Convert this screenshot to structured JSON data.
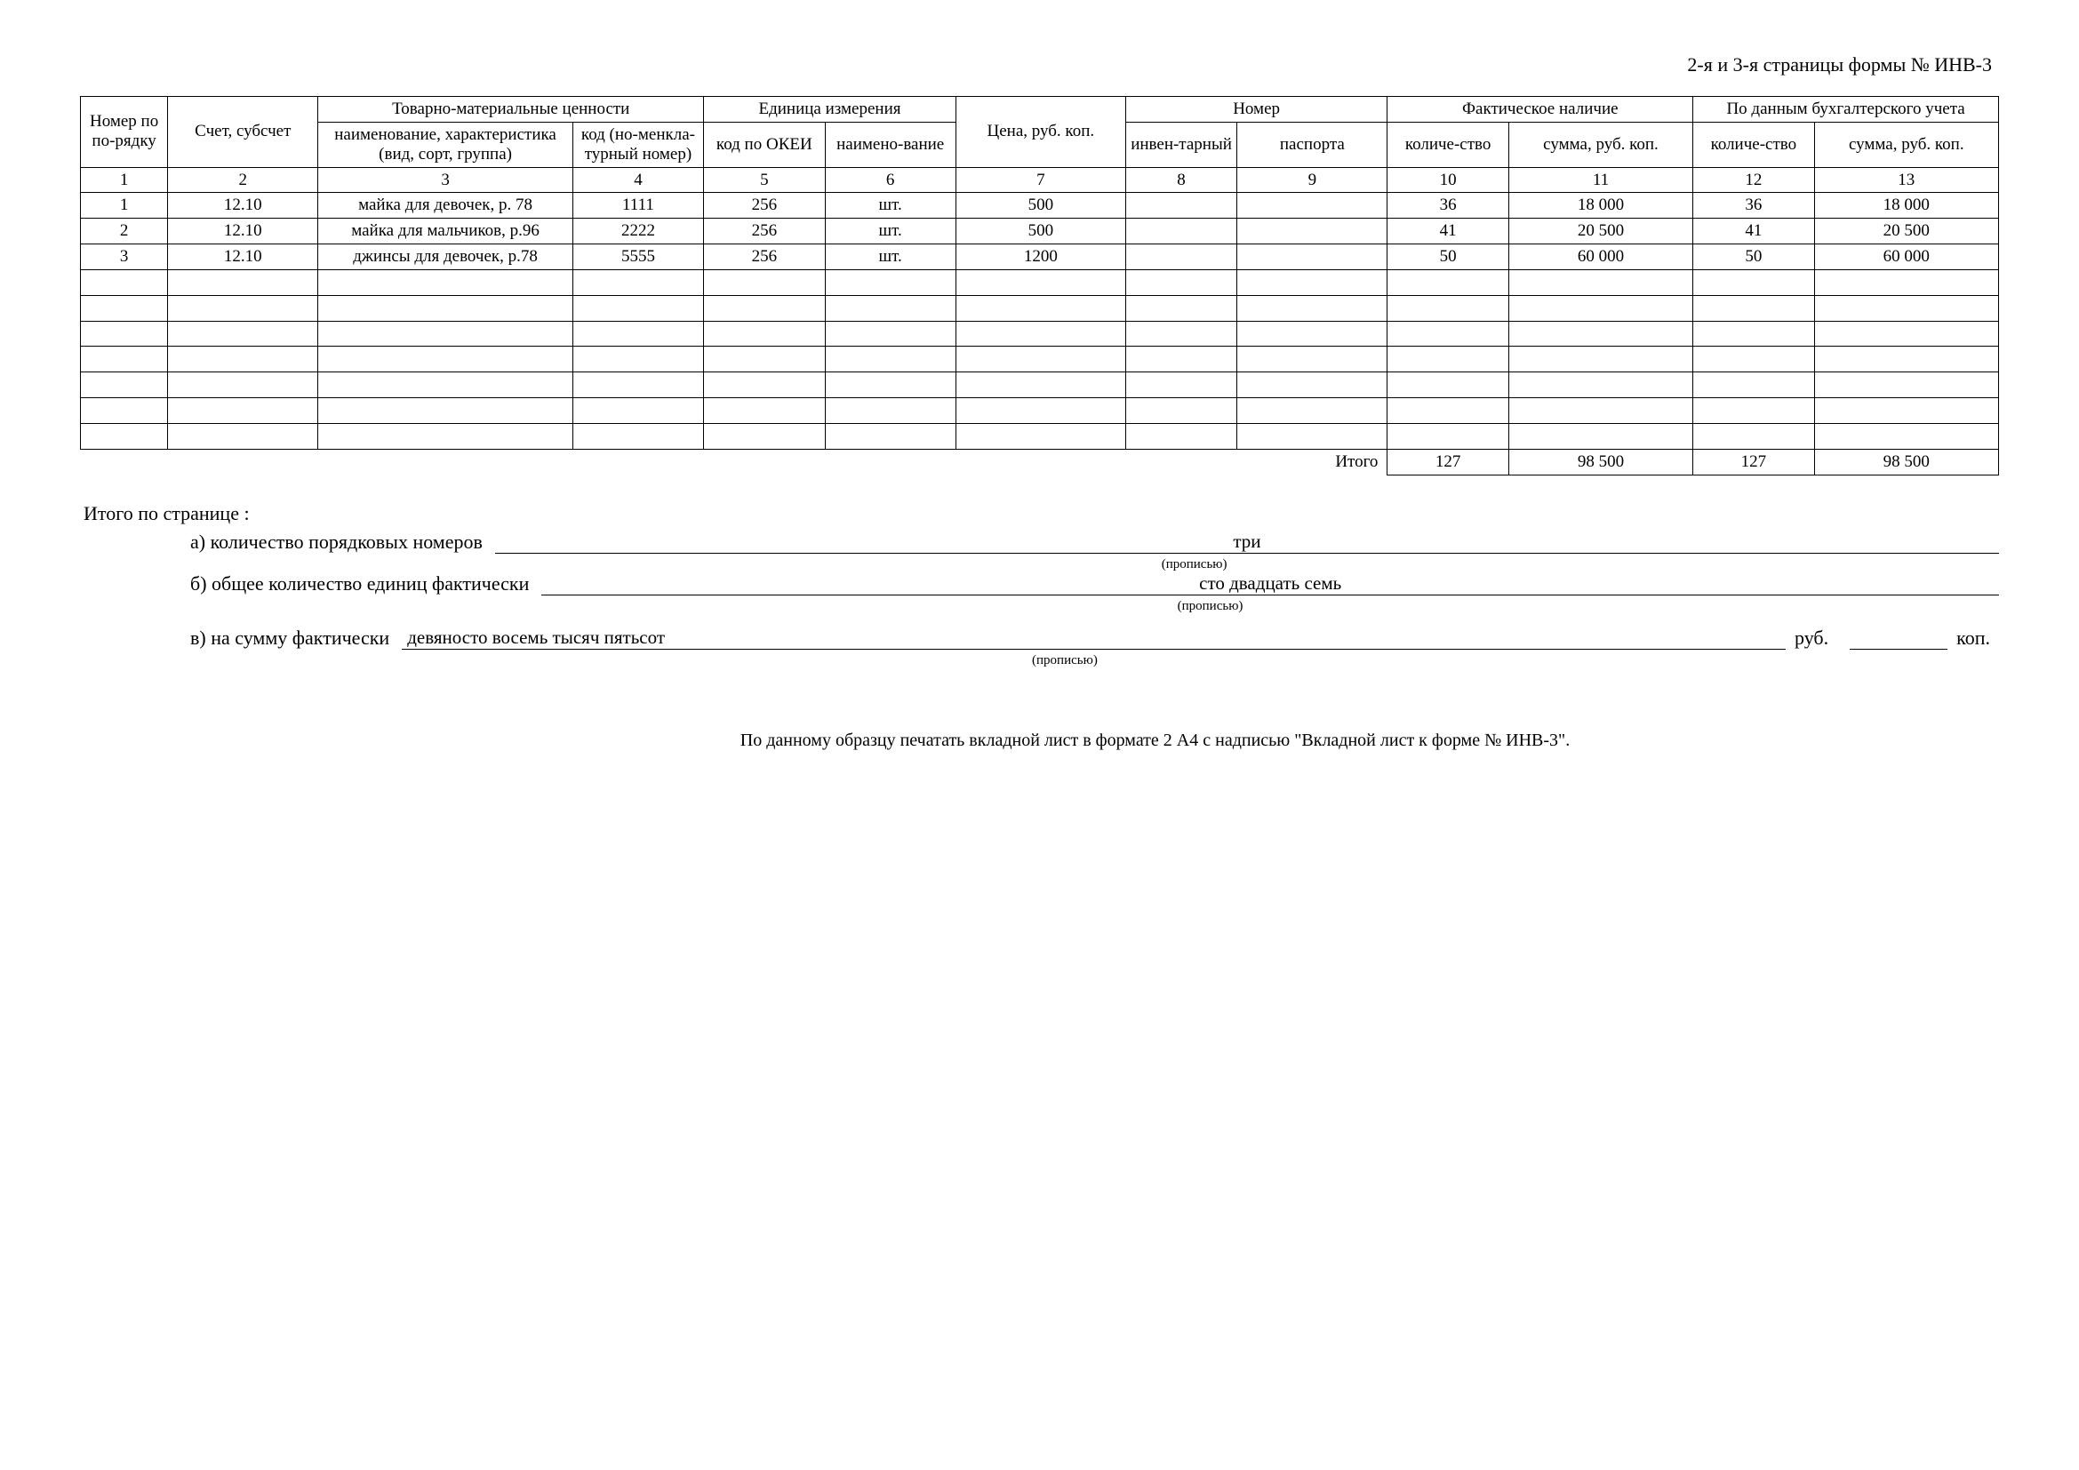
{
  "header": {
    "title": "2-я и 3-я страницы формы № ИНВ-3"
  },
  "table": {
    "head": {
      "row_no": "Номер по по-рядку",
      "account": "Счет, субсчет",
      "goods_group": "Товарно-материальные ценности",
      "goods_name": "наименование, характеристика (вид, сорт, группа)",
      "goods_code": "код  (но-менкла-турный номер)",
      "unit_group": "Единица измерения",
      "unit_code": "код по ОКЕИ",
      "unit_name": "наимено-вание",
      "price": "Цена, руб. коп.",
      "number_group": "Номер",
      "inv_no": "инвен-тарный",
      "passport": "паспорта",
      "actual_group": "Фактическое наличие",
      "qty": "количе-ство",
      "amount": "сумма, руб. коп.",
      "book_group": "По данным бухгалтерского учета"
    },
    "col_nums": [
      "1",
      "2",
      "3",
      "4",
      "5",
      "6",
      "7",
      "8",
      "9",
      "10",
      "11",
      "12",
      "13"
    ],
    "rows": [
      {
        "n": "1",
        "acc": "12.10",
        "name": "майка для девочек, р. 78",
        "code": "1111",
        "okei": "256",
        "unit": "шт.",
        "price": "500",
        "inv": "",
        "pass": "",
        "aq": "36",
        "as": "18 000",
        "bq": "36",
        "bs": "18 000"
      },
      {
        "n": "2",
        "acc": "12.10",
        "name": "майка для мальчиков, р.96",
        "code": "2222",
        "okei": "256",
        "unit": "шт.",
        "price": "500",
        "inv": "",
        "pass": "",
        "aq": "41",
        "as": "20 500",
        "bq": "41",
        "bs": "20 500"
      },
      {
        "n": "3",
        "acc": "12.10",
        "name": "джинсы для девочек, р.78",
        "code": "5555",
        "okei": "256",
        "unit": "шт.",
        "price": "1200",
        "inv": "",
        "pass": "",
        "aq": "50",
        "as": "60 000",
        "bq": "50",
        "bs": "60 000"
      },
      {
        "n": "",
        "acc": "",
        "name": "",
        "code": "",
        "okei": "",
        "unit": "",
        "price": "",
        "inv": "",
        "pass": "",
        "aq": "",
        "as": "",
        "bq": "",
        "bs": ""
      },
      {
        "n": "",
        "acc": "",
        "name": "",
        "code": "",
        "okei": "",
        "unit": "",
        "price": "",
        "inv": "",
        "pass": "",
        "aq": "",
        "as": "",
        "bq": "",
        "bs": ""
      },
      {
        "n": "",
        "acc": "",
        "name": "",
        "code": "",
        "okei": "",
        "unit": "",
        "price": "",
        "inv": "",
        "pass": "",
        "aq": "",
        "as": "",
        "bq": "",
        "bs": ""
      },
      {
        "n": "",
        "acc": "",
        "name": "",
        "code": "",
        "okei": "",
        "unit": "",
        "price": "",
        "inv": "",
        "pass": "",
        "aq": "",
        "as": "",
        "bq": "",
        "bs": ""
      },
      {
        "n": "",
        "acc": "",
        "name": "",
        "code": "",
        "okei": "",
        "unit": "",
        "price": "",
        "inv": "",
        "pass": "",
        "aq": "",
        "as": "",
        "bq": "",
        "bs": ""
      },
      {
        "n": "",
        "acc": "",
        "name": "",
        "code": "",
        "okei": "",
        "unit": "",
        "price": "",
        "inv": "",
        "pass": "",
        "aq": "",
        "as": "",
        "bq": "",
        "bs": ""
      },
      {
        "n": "",
        "acc": "",
        "name": "",
        "code": "",
        "okei": "",
        "unit": "",
        "price": "",
        "inv": "",
        "pass": "",
        "aq": "",
        "as": "",
        "bq": "",
        "bs": ""
      }
    ],
    "totals": {
      "label": "Итого",
      "aq": "127",
      "as": "98 500",
      "bq": "127",
      "bs": "98 500"
    }
  },
  "summary": {
    "title": "Итого по странице :",
    "a_label": "а) количество порядковых номеров",
    "a_value": "три",
    "b_label": "б) общее количество единиц фактически",
    "b_value": "сто двадцать семь",
    "c_label": "в) на сумму фактически",
    "c_value": "девяносто восемь тысяч пятьсот",
    "rub": "руб.",
    "kop": "коп.",
    "hint": "(прописью)"
  },
  "footnote": "По данному образцу печатать вкладной лист в формате 2 А4 с надписью \"Вкладной лист к форме № ИНВ-3\"."
}
